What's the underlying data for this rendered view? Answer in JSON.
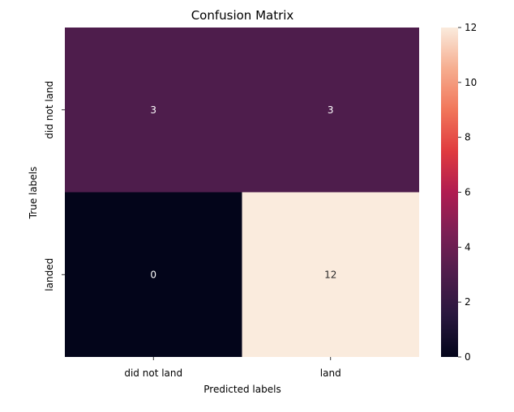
{
  "chart_data": {
    "type": "heatmap",
    "title": "Confusion Matrix",
    "xlabel": "Predicted labels",
    "ylabel": "True labels",
    "x_categories": [
      "did not land",
      "land"
    ],
    "y_categories": [
      "did not land",
      "landed"
    ],
    "values": [
      [
        3,
        3
      ],
      [
        0,
        12
      ]
    ],
    "colormap": "rocket",
    "colorbar": {
      "range": [
        0,
        12
      ],
      "ticks": [
        0,
        2,
        4,
        6,
        8,
        10,
        12
      ]
    },
    "grid": false
  }
}
